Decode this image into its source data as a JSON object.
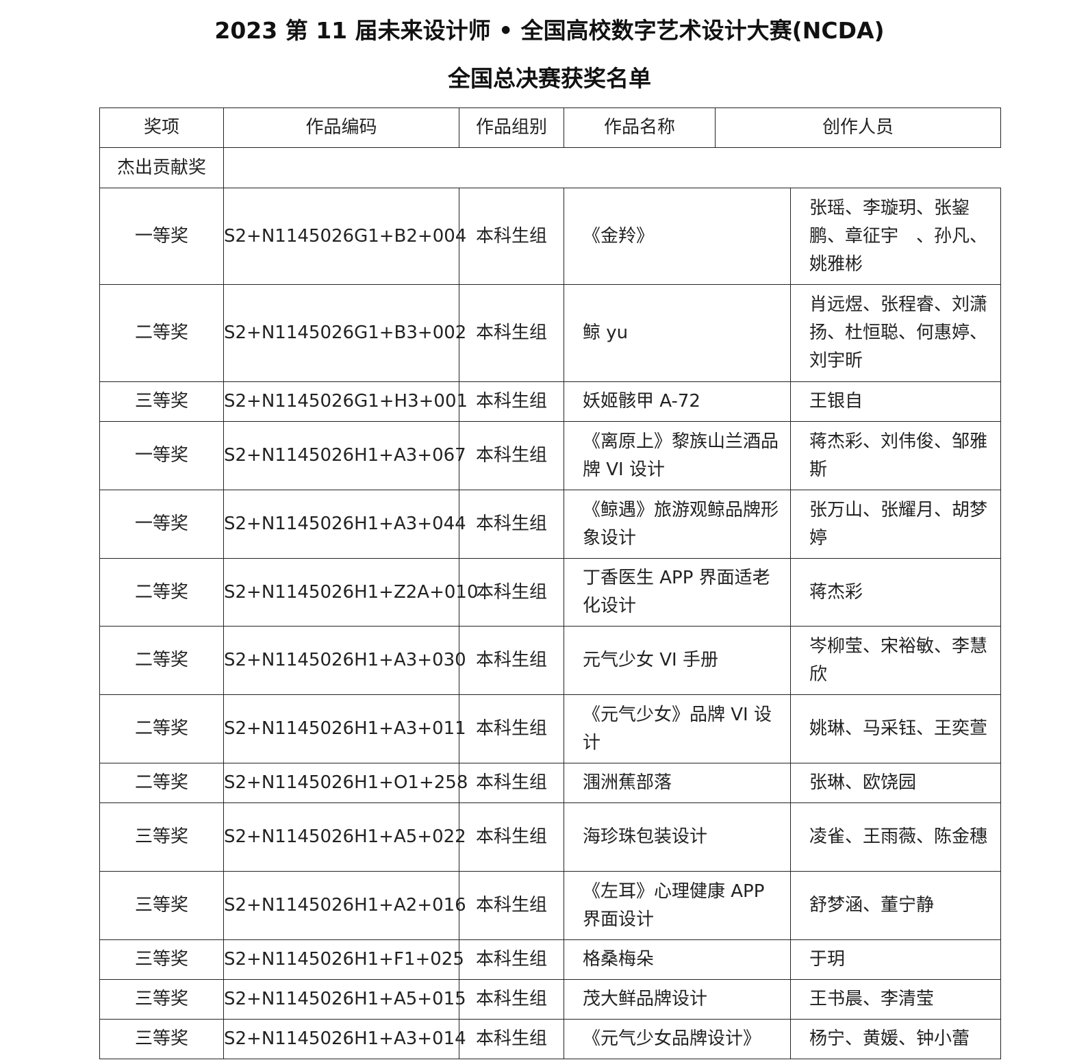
{
  "title": "2023 第 11 届未来设计师 • 全国高校数字艺术设计大赛(NCDA)",
  "subtitle": "全国总决赛获奖名单",
  "headers": [
    "奖项",
    "作品编码",
    "作品组别",
    "作品名称",
    "创作人员"
  ],
  "section": "杰出贡献奖",
  "rows": [
    {
      "award": "一等奖",
      "code": "S2+N1145026G1+B2+004",
      "group": "本科生组",
      "work": "《金羚》",
      "creators": "张瑶、李璇玥、张鋆鹏、章征宇　、孙凡、姚雅彬"
    },
    {
      "award": "二等奖",
      "code": "S2+N1145026G1+B3+002",
      "group": "本科生组",
      "work": "鲸 yu",
      "creators": "肖远煜、张程睿、刘潇扬、杜恒聪、何惠婷、刘宇昕"
    },
    {
      "award": "三等奖",
      "code": "S2+N1145026G1+H3+001",
      "group": "本科生组",
      "work": "妖姬骸甲 A-72",
      "creators": "王银自"
    },
    {
      "award": "一等奖",
      "code": "S2+N1145026H1+A3+067",
      "group": "本科生组",
      "work": "《离原上》黎族山兰酒品牌 VI 设计",
      "creators": "蒋杰彩、刘伟俊、邹雅斯"
    },
    {
      "award": "一等奖",
      "code": "S2+N1145026H1+A3+044",
      "group": "本科生组",
      "work": "《鲸遇》旅游观鲸品牌形象设计",
      "creators": "张万山、张耀月、胡梦婷"
    },
    {
      "award": "二等奖",
      "code": "S2+N1145026H1+Z2A+010",
      "group": "本科生组",
      "work": "丁香医生 APP 界面适老化设计",
      "creators": "蒋杰彩"
    },
    {
      "award": "二等奖",
      "code": "S2+N1145026H1+A3+030",
      "group": "本科生组",
      "work": "元气少女 VI 手册",
      "creators": "岑柳莹、宋裕敏、李慧欣"
    },
    {
      "award": "二等奖",
      "code": "S2+N1145026H1+A3+011",
      "group": "本科生组",
      "work": "《元气少女》品牌 VI 设计",
      "creators": "姚琳、马采钰、王奕萱"
    },
    {
      "award": "二等奖",
      "code": "S2+N1145026H1+O1+258",
      "group": "本科生组",
      "work": "涠洲蕉部落",
      "creators": "张琳、欧饶园"
    },
    {
      "award": "三等奖",
      "code": "S2+N1145026H1+A5+022",
      "group": "本科生组",
      "work": "海珍珠包装设计",
      "creators": "凌雀、王雨薇、陈金穗"
    },
    {
      "award": "三等奖",
      "code": "S2+N1145026H1+A2+016",
      "group": "本科生组",
      "work": "《左耳》心理健康 APP 界面设计",
      "creators": "舒梦涵、董宁静"
    },
    {
      "award": "三等奖",
      "code": "S2+N1145026H1+F1+025",
      "group": "本科生组",
      "work": "格桑梅朵",
      "creators": "于玥"
    },
    {
      "award": "三等奖",
      "code": "S2+N1145026H1+A5+015",
      "group": "本科生组",
      "work": "茂大鲜品牌设计",
      "creators": "王书晨、李清莹"
    },
    {
      "award": "三等奖",
      "code": "S2+N1145026H1+A3+014",
      "group": "本科生组",
      "work": "《元气少女品牌设计》",
      "creators": "杨宁、黄媛、钟小蕾"
    }
  ]
}
